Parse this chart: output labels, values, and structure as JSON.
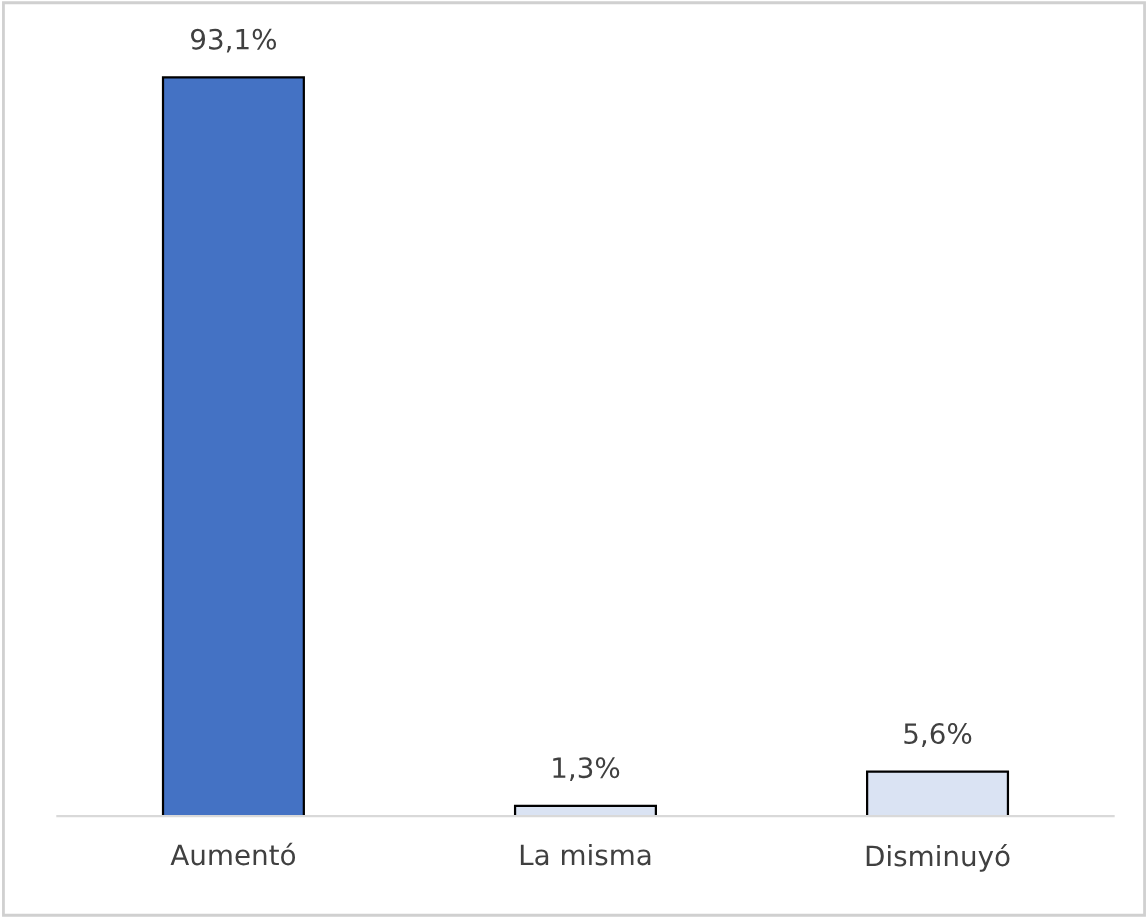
{
  "chart_data": {
    "type": "bar",
    "categories": [
      "Aumentó",
      "La misma",
      "Disminuyó"
    ],
    "values": [
      93.1,
      1.3,
      5.6
    ],
    "value_labels": [
      "93,1%",
      "1,3%",
      "5,6%"
    ],
    "colors": [
      "#4472c4",
      "#dae3f3",
      "#dae3f3"
    ]
  }
}
